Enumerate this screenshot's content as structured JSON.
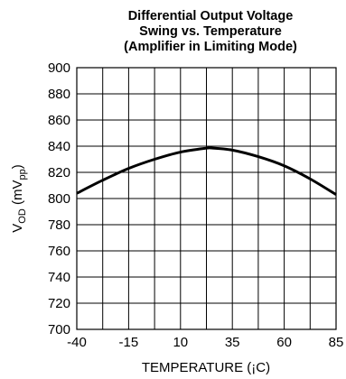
{
  "chart_data": {
    "type": "line",
    "title_lines": [
      "Differential Output Voltage",
      "Swing vs. Temperature",
      "(Amplifier in Limiting Mode)"
    ],
    "xlabel": "TEMPERATURE (¡C)",
    "ylabel": {
      "main": "V",
      "sub1": "OD",
      "mid": " (mV",
      "sub2": "pp",
      "end": ")"
    },
    "xlim": [
      -40,
      85
    ],
    "ylim": [
      700,
      900
    ],
    "x_ticks": [
      -40,
      -15,
      10,
      35,
      60,
      85
    ],
    "x_tick_labels": [
      "-40",
      "-15",
      "10",
      "35",
      "60",
      "85"
    ],
    "y_ticks": [
      700,
      720,
      740,
      760,
      780,
      800,
      820,
      840,
      860,
      880,
      900
    ],
    "y_tick_labels": [
      "700",
      "720",
      "740",
      "760",
      "780",
      "800",
      "820",
      "840",
      "860",
      "880",
      "900"
    ],
    "x_grid_step": 12.5,
    "grid": true,
    "series": [
      {
        "x": [
          -40,
          -27.5,
          -15,
          -2.5,
          10,
          22.5,
          25,
          35,
          47.5,
          60,
          72.5,
          85
        ],
        "y": [
          804,
          814,
          823,
          830,
          835.5,
          838.5,
          838.6,
          837,
          832,
          825,
          815,
          803
        ]
      }
    ]
  }
}
